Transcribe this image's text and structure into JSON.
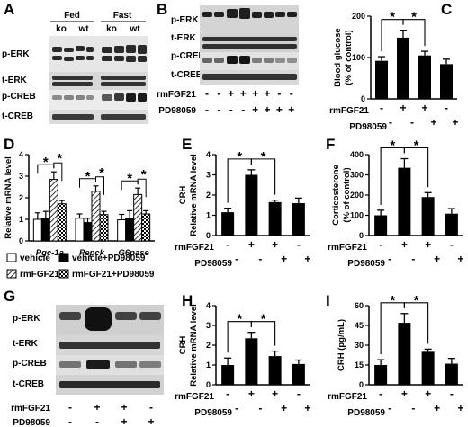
{
  "panels": {
    "A": {
      "label": "A",
      "groups": [
        "Fed",
        "Fast"
      ],
      "genotypes": [
        "ko",
        "wt",
        "ko",
        "wt"
      ],
      "rows": [
        "p-ERK",
        "t-ERK",
        "p-CREB",
        "t-CREB"
      ]
    },
    "B": {
      "label": "B",
      "rows": [
        "p-ERK",
        "t-ERK",
        "p-CREB",
        "t-CREB"
      ],
      "treat_labels": [
        "rmFGF21",
        "PD98059"
      ],
      "rmFGF21": [
        "-",
        "-",
        "+",
        "+",
        "+",
        "+",
        "-",
        "-"
      ],
      "PD98059": [
        "-",
        "-",
        "-",
        "-",
        "+",
        "+",
        "+",
        "+"
      ]
    },
    "G": {
      "label": "G",
      "rows": [
        "p-ERK",
        "t-ERK",
        "p-CREB",
        "t-CREB"
      ],
      "treat_labels": [
        "rmFGF21",
        "PD98059"
      ],
      "rmFGF21": [
        "-",
        "+",
        "+",
        "-"
      ],
      "PD98059": [
        "-",
        "-",
        "+",
        "+"
      ]
    },
    "D_legend": {
      "items": [
        "vehicle",
        "vehicle+PD98059",
        "rmFGF21",
        "rmFGF21+PD98059"
      ]
    }
  },
  "chart_data": [
    {
      "id": "C",
      "type": "bar",
      "label": "C",
      "ylabel": "Blood glucose\n(% of control)",
      "ylim": [
        0,
        200
      ],
      "yticks": [
        0,
        100,
        200
      ],
      "values": [
        92,
        148,
        105,
        84
      ],
      "errors": [
        10,
        18,
        10,
        12
      ],
      "rmFGF21": [
        "-",
        "+",
        "+",
        "-"
      ],
      "PD98059": [
        "-",
        "-",
        "+",
        "+"
      ],
      "sig": [
        [
          0,
          1
        ],
        [
          1,
          2
        ]
      ],
      "bar_color": "#000000"
    },
    {
      "id": "D",
      "type": "bar",
      "label": "D",
      "ylabel": "Relative mRNA level",
      "ylim": [
        0,
        4
      ],
      "yticks": [
        0,
        1,
        2,
        3,
        4
      ],
      "categories": [
        "Pgc-1a",
        "Pepck",
        "G6pase"
      ],
      "series": [
        {
          "name": "vehicle",
          "values": [
            1.0,
            1.05,
            0.98
          ],
          "errors": [
            0.3,
            0.2,
            0.25
          ]
        },
        {
          "name": "vehicle+PD98059",
          "values": [
            1.02,
            0.85,
            1.05
          ],
          "errors": [
            0.35,
            0.2,
            0.35
          ]
        },
        {
          "name": "rmFGF21",
          "values": [
            2.85,
            2.3,
            2.15
          ],
          "errors": [
            0.35,
            0.25,
            0.3
          ]
        },
        {
          "name": "rmFGF21+PD98059",
          "values": [
            1.72,
            1.22,
            1.25
          ],
          "errors": [
            0.15,
            0.15,
            0.15
          ]
        }
      ]
    },
    {
      "id": "E",
      "type": "bar",
      "label": "E",
      "ylabel": "CRH\nRelative mRNA level",
      "ylim": [
        0,
        4
      ],
      "yticks": [
        0,
        1,
        2,
        3,
        4
      ],
      "values": [
        1.15,
        3.0,
        1.65,
        1.6
      ],
      "errors": [
        0.2,
        0.25,
        0.1,
        0.25
      ],
      "rmFGF21": [
        "-",
        "+",
        "+",
        "-"
      ],
      "PD98059": [
        "-",
        "-",
        "+",
        "+"
      ],
      "sig": [
        [
          0,
          1
        ],
        [
          1,
          2
        ]
      ]
    },
    {
      "id": "F",
      "type": "bar",
      "label": "F",
      "ylabel": "Corticosterone\n(% of control)",
      "ylim": [
        0,
        400
      ],
      "yticks": [
        0,
        100,
        200,
        300,
        400
      ],
      "values": [
        100,
        335,
        190,
        108
      ],
      "errors": [
        25,
        45,
        22,
        25
      ],
      "rmFGF21": [
        "-",
        "+",
        "+",
        "-"
      ],
      "PD98059": [
        "-",
        "-",
        "+",
        "+"
      ],
      "sig": [
        [
          0,
          1
        ],
        [
          1,
          2
        ]
      ]
    },
    {
      "id": "H",
      "type": "bar",
      "label": "H",
      "ylabel": "CRH\nRelative mRNA level",
      "ylim": [
        0,
        4
      ],
      "yticks": [
        0,
        1,
        2,
        3,
        4
      ],
      "values": [
        1.0,
        2.35,
        1.45,
        1.05
      ],
      "errors": [
        0.35,
        0.3,
        0.25,
        0.2
      ],
      "rmFGF21": [
        "-",
        "+",
        "+",
        "-"
      ],
      "PD98059": [
        "-",
        "-",
        "+",
        "+"
      ],
      "sig": [
        [
          0,
          1
        ],
        [
          1,
          2
        ]
      ]
    },
    {
      "id": "I",
      "type": "bar",
      "label": "I",
      "ylabel": "CRH (pg/mL)",
      "ylim": [
        0,
        60
      ],
      "yticks": [
        0,
        15,
        30,
        45,
        60
      ],
      "values": [
        15,
        47,
        25,
        16
      ],
      "errors": [
        4,
        7,
        2,
        4
      ],
      "rmFGF21": [
        "-",
        "+",
        "+",
        "-"
      ],
      "PD98059": [
        "-",
        "-",
        "+",
        "+"
      ],
      "sig": [
        [
          0,
          1
        ],
        [
          1,
          2
        ]
      ]
    }
  ]
}
